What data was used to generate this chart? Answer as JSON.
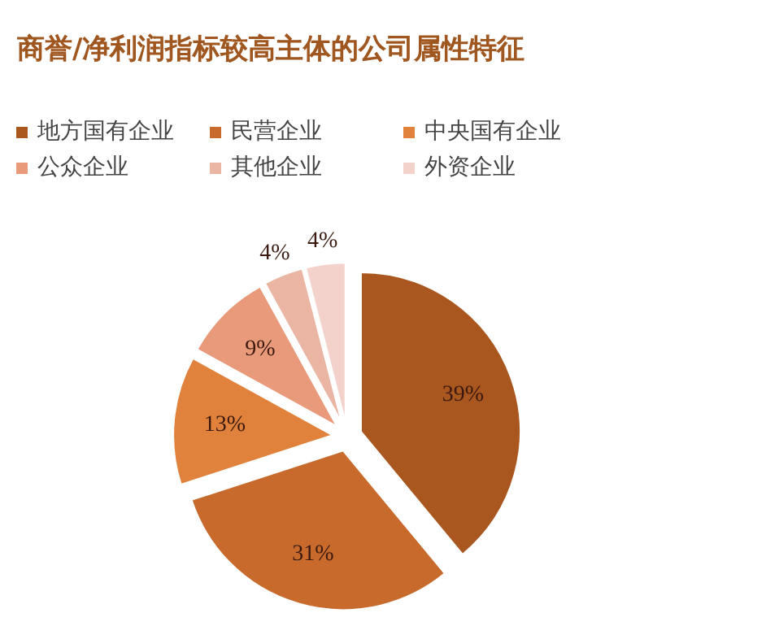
{
  "chart_data": {
    "type": "pie",
    "title": "商誉/净利润指标较高主体的公司属性特征",
    "categories": [
      "地方国有企业",
      "民营企业",
      "中央国有企业",
      "公众企业",
      "其他企业",
      "外资企业"
    ],
    "values": [
      39,
      31,
      13,
      9,
      4,
      4
    ],
    "colors": [
      "#a9561f",
      "#c86a2c",
      "#e0823c",
      "#e89a7a",
      "#ebb5a3",
      "#f3d2cb"
    ],
    "value_labels": [
      "39%",
      "31%",
      "13%",
      "9%",
      "4%",
      "4%"
    ],
    "legend": "top"
  }
}
